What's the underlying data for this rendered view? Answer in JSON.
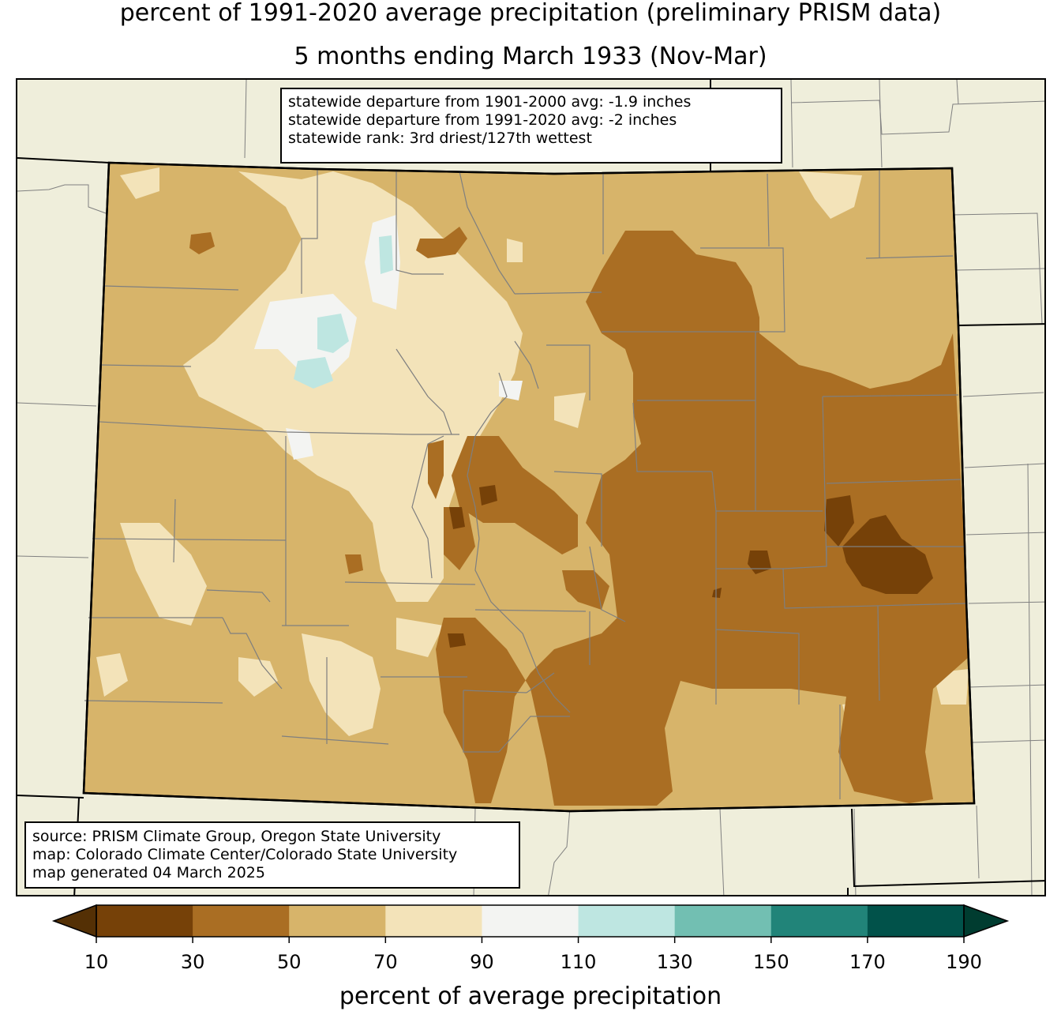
{
  "title": {
    "line1": "percent of 1991-2020 average precipitation (preliminary PRISM data)",
    "line2": "5 months ending March 1933 (Nov-Mar)"
  },
  "stats": {
    "line1": "statewide departure from 1901-2000 avg: -1.9 inches",
    "line2": "statewide departure from 1991-2020 avg: -2 inches",
    "line3": "statewide rank: 3rd driest/127th wettest"
  },
  "credits": {
    "line1": "source: PRISM Climate Group, Oregon State University",
    "line2": "map: Colorado Climate Center/Colorado State University",
    "line3": "map generated 04 March 2025"
  },
  "legend": {
    "label": "percent of average precipitation",
    "ticks": [
      "10",
      "30",
      "50",
      "70",
      "90",
      "110",
      "130",
      "150",
      "170",
      "190"
    ],
    "colors": [
      "#764108",
      "#aa6e23",
      "#d7b46a",
      "#f3e3b9",
      "#f3f4f2",
      "#bee6e1",
      "#72bfb2",
      "#218479",
      "#01524a"
    ],
    "under_color": "#543005",
    "over_color": "#003c30"
  },
  "map_colors": {
    "background": "#efeedb",
    "very_dry": "#764108",
    "dry": "#aa6e23",
    "moderately_dry": "#d7b46a",
    "slightly_dry": "#f3e3b9",
    "near_normal": "#f3f4f2",
    "wet": "#bee6e1"
  }
}
